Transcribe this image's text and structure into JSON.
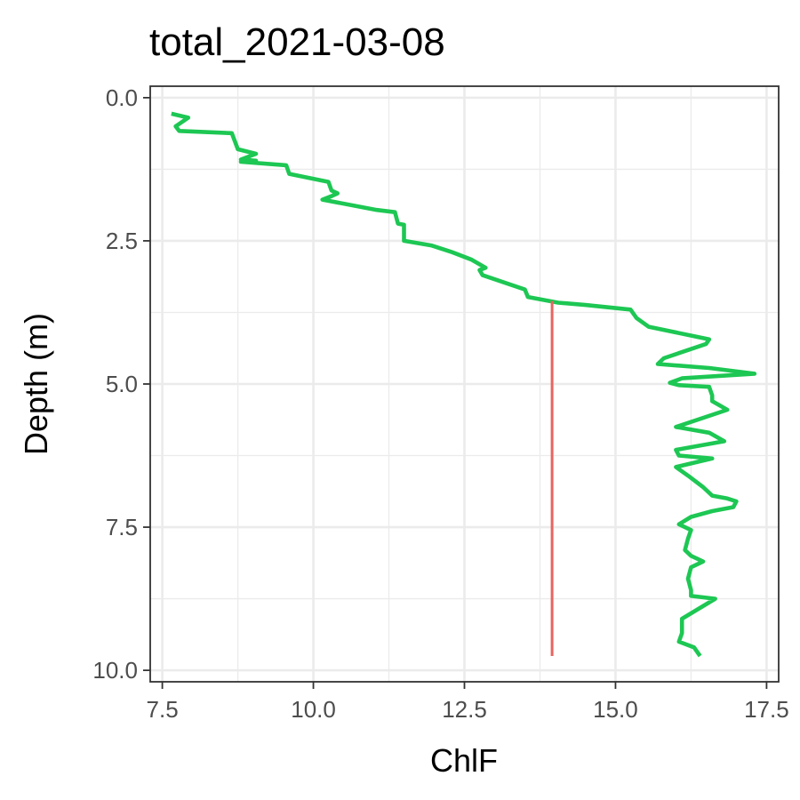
{
  "chart_data": {
    "type": "line",
    "title": "total_2021-03-08",
    "xlabel": "ChlF",
    "ylabel": "Depth (m)",
    "xlim": [
      7.3,
      17.7
    ],
    "ylim": [
      10.2,
      -0.2
    ],
    "y_reversed": true,
    "x_ticks": [
      7.5,
      10.0,
      12.5,
      15.0,
      17.5
    ],
    "x_tick_labels": [
      "7.5",
      "10.0",
      "12.5",
      "15.0",
      "17.5"
    ],
    "y_ticks": [
      0.0,
      2.5,
      5.0,
      7.5,
      10.0
    ],
    "y_tick_labels": [
      "0.0",
      "2.5",
      "5.0",
      "7.5",
      "10.0"
    ],
    "grid": true,
    "colors": {
      "profile": "#1DC753",
      "reference": "#E8655F",
      "major_grid": "#EBEBEB",
      "minor_grid": "#EBEBEB",
      "panel_border": "#333333"
    },
    "series": [
      {
        "points": [
          [
            7.65,
            0.28
          ],
          [
            7.93,
            0.35
          ],
          [
            7.72,
            0.5
          ],
          [
            7.78,
            0.58
          ],
          [
            8.65,
            0.62
          ],
          [
            8.75,
            0.9
          ],
          [
            9.05,
            0.98
          ],
          [
            8.8,
            1.08
          ],
          [
            9.05,
            1.1
          ],
          [
            8.8,
            1.12
          ],
          [
            9.55,
            1.18
          ],
          [
            9.6,
            1.33
          ],
          [
            10.25,
            1.47
          ],
          [
            10.3,
            1.62
          ],
          [
            10.4,
            1.67
          ],
          [
            10.3,
            1.72
          ],
          [
            10.15,
            1.78
          ],
          [
            11.05,
            1.96
          ],
          [
            11.35,
            2.0
          ],
          [
            11.4,
            2.2
          ],
          [
            11.5,
            2.22
          ],
          [
            11.5,
            2.5
          ],
          [
            11.95,
            2.58
          ],
          [
            12.3,
            2.7
          ],
          [
            12.62,
            2.83
          ],
          [
            12.85,
            2.97
          ],
          [
            12.75,
            3.01
          ],
          [
            12.8,
            3.1
          ],
          [
            13.5,
            3.35
          ],
          [
            13.55,
            3.48
          ],
          [
            14.05,
            3.58
          ],
          [
            14.5,
            3.62
          ],
          [
            15.25,
            3.7
          ],
          [
            15.35,
            3.85
          ],
          [
            15.55,
            4.0
          ],
          [
            16.55,
            4.22
          ],
          [
            16.5,
            4.3
          ],
          [
            15.8,
            4.55
          ],
          [
            15.7,
            4.65
          ],
          [
            16.55,
            4.72
          ],
          [
            17.3,
            4.82
          ],
          [
            16.1,
            4.9
          ],
          [
            15.9,
            4.98
          ],
          [
            16.05,
            5.02
          ],
          [
            16.55,
            5.05
          ],
          [
            16.6,
            5.2
          ],
          [
            16.6,
            5.3
          ],
          [
            16.85,
            5.45
          ],
          [
            16.0,
            5.75
          ],
          [
            16.55,
            5.85
          ],
          [
            16.8,
            6.0
          ],
          [
            16.0,
            6.15
          ],
          [
            16.05,
            6.25
          ],
          [
            16.6,
            6.3
          ],
          [
            16.0,
            6.45
          ],
          [
            16.2,
            6.6
          ],
          [
            16.45,
            6.8
          ],
          [
            16.6,
            6.95
          ],
          [
            16.85,
            7.0
          ],
          [
            17.0,
            7.05
          ],
          [
            16.95,
            7.15
          ],
          [
            16.6,
            7.22
          ],
          [
            16.25,
            7.32
          ],
          [
            16.05,
            7.45
          ],
          [
            16.25,
            7.55
          ],
          [
            16.2,
            7.7
          ],
          [
            16.15,
            7.9
          ],
          [
            16.25,
            8.0
          ],
          [
            16.45,
            8.1
          ],
          [
            16.25,
            8.2
          ],
          [
            16.2,
            8.4
          ],
          [
            16.25,
            8.6
          ],
          [
            16.25,
            8.7
          ],
          [
            16.65,
            8.75
          ],
          [
            16.1,
            9.1
          ],
          [
            16.1,
            9.35
          ],
          [
            16.05,
            9.5
          ],
          [
            16.3,
            9.6
          ],
          [
            16.4,
            9.75
          ]
        ]
      },
      {
        "points": [
          [
            13.95,
            3.55
          ],
          [
            13.95,
            9.75
          ]
        ]
      }
    ]
  }
}
